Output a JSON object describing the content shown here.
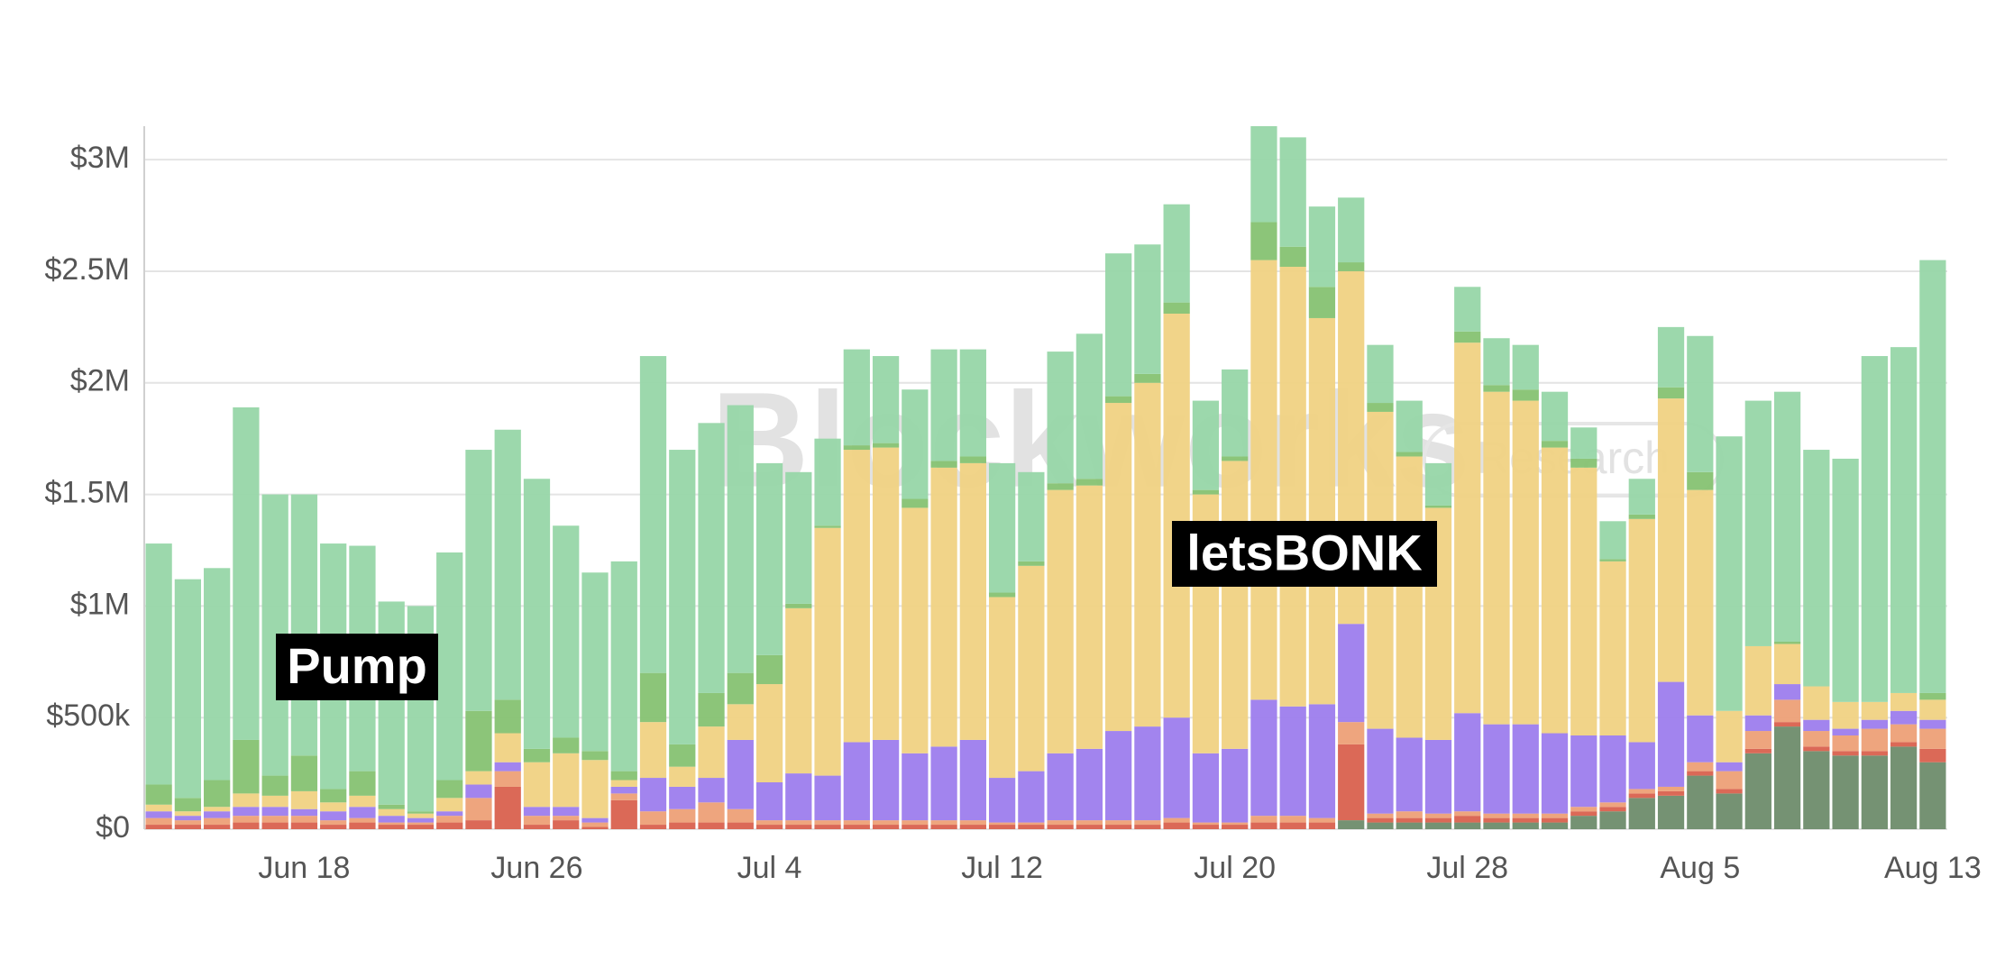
{
  "chart_data": {
    "type": "stacked_bar",
    "watermark": "Blockworks",
    "watermark_sub": "Research",
    "categories": [
      null,
      null,
      null,
      null,
      null,
      "Jun 18",
      null,
      null,
      null,
      null,
      null,
      null,
      null,
      "Jun 26",
      null,
      null,
      null,
      null,
      null,
      null,
      null,
      "Jul 4",
      null,
      null,
      null,
      null,
      null,
      null,
      null,
      "Jul 12",
      null,
      null,
      null,
      null,
      null,
      null,
      null,
      "Jul 20",
      null,
      null,
      null,
      null,
      null,
      null,
      null,
      "Jul 28",
      null,
      null,
      null,
      null,
      null,
      null,
      null,
      "Aug 5",
      null,
      null,
      null,
      null,
      null,
      null,
      null,
      "Aug 13"
    ],
    "ylim": [
      0,
      3150000
    ],
    "yticks": [
      {
        "value": 0,
        "label": "$0"
      },
      {
        "value": 500000,
        "label": "$500k"
      },
      {
        "value": 1000000,
        "label": "$1M"
      },
      {
        "value": 1500000,
        "label": "$1.5M"
      },
      {
        "value": 2000000,
        "label": "$2M"
      },
      {
        "value": 2500000,
        "label": "$2.5M"
      },
      {
        "value": 3000000,
        "label": "$3M"
      }
    ],
    "grid": true,
    "series": [
      {
        "color": "#6e8c6c",
        "values": [
          0,
          0,
          0,
          0,
          0,
          0,
          0,
          0,
          0,
          0,
          0,
          0,
          0,
          0,
          0,
          0,
          0,
          0,
          0,
          0,
          0,
          0,
          0,
          0,
          0,
          0,
          0,
          0,
          0,
          0,
          0,
          0,
          0,
          0,
          0,
          0,
          0,
          0,
          0,
          0,
          0,
          40000,
          30000,
          30000,
          30000,
          30000,
          30000,
          30000,
          30000,
          60000,
          80000,
          140000,
          150000,
          240000,
          160000,
          340000,
          460000,
          350000,
          330000,
          330000,
          370000,
          300000
        ]
      },
      {
        "color": "#d9614e",
        "values": [
          20000,
          20000,
          20000,
          30000,
          30000,
          30000,
          20000,
          30000,
          20000,
          20000,
          30000,
          40000,
          190000,
          20000,
          40000,
          10000,
          130000,
          20000,
          30000,
          30000,
          30000,
          20000,
          20000,
          20000,
          20000,
          20000,
          20000,
          20000,
          20000,
          20000,
          20000,
          20000,
          20000,
          20000,
          20000,
          30000,
          20000,
          20000,
          30000,
          30000,
          30000,
          340000,
          20000,
          20000,
          20000,
          30000,
          20000,
          20000,
          20000,
          20000,
          20000,
          20000,
          20000,
          20000,
          20000,
          20000,
          20000,
          20000,
          20000,
          20000,
          20000,
          60000
        ]
      },
      {
        "color": "#eda077",
        "values": [
          30000,
          20000,
          30000,
          30000,
          30000,
          30000,
          20000,
          20000,
          10000,
          10000,
          30000,
          100000,
          70000,
          40000,
          20000,
          20000,
          30000,
          60000,
          60000,
          90000,
          60000,
          20000,
          20000,
          20000,
          20000,
          20000,
          20000,
          20000,
          20000,
          10000,
          10000,
          20000,
          20000,
          20000,
          20000,
          20000,
          10000,
          10000,
          30000,
          30000,
          20000,
          100000,
          20000,
          30000,
          20000,
          20000,
          20000,
          20000,
          20000,
          20000,
          20000,
          20000,
          20000,
          40000,
          80000,
          80000,
          100000,
          70000,
          70000,
          100000,
          80000,
          90000
        ]
      },
      {
        "color": "#9d7ded",
        "values": [
          30000,
          20000,
          30000,
          40000,
          40000,
          30000,
          40000,
          50000,
          30000,
          20000,
          20000,
          60000,
          40000,
          40000,
          40000,
          20000,
          30000,
          150000,
          100000,
          110000,
          310000,
          170000,
          210000,
          200000,
          350000,
          360000,
          300000,
          330000,
          360000,
          200000,
          230000,
          300000,
          320000,
          400000,
          420000,
          450000,
          310000,
          330000,
          520000,
          490000,
          510000,
          440000,
          380000,
          330000,
          330000,
          440000,
          400000,
          400000,
          360000,
          320000,
          300000,
          210000,
          470000,
          210000,
          40000,
          70000,
          70000,
          50000,
          30000,
          40000,
          60000,
          40000
        ]
      },
      {
        "name": "letsBONK",
        "color": "#f0d283",
        "values": [
          30000,
          20000,
          20000,
          60000,
          50000,
          80000,
          40000,
          50000,
          30000,
          20000,
          60000,
          60000,
          130000,
          200000,
          240000,
          260000,
          30000,
          250000,
          90000,
          230000,
          160000,
          440000,
          740000,
          1110000,
          1310000,
          1310000,
          1100000,
          1250000,
          1240000,
          810000,
          920000,
          1180000,
          1180000,
          1470000,
          1540000,
          1810000,
          1160000,
          1290000,
          1970000,
          1970000,
          1730000,
          1580000,
          1420000,
          1260000,
          1040000,
          1660000,
          1490000,
          1450000,
          1280000,
          1200000,
          780000,
          1000000,
          1270000,
          1010000,
          230000,
          310000,
          180000,
          150000,
          120000,
          80000,
          80000,
          90000
        ]
      },
      {
        "color": "#86c272",
        "values": [
          90000,
          60000,
          120000,
          240000,
          90000,
          160000,
          60000,
          110000,
          20000,
          10000,
          80000,
          270000,
          150000,
          60000,
          70000,
          40000,
          40000,
          220000,
          100000,
          150000,
          140000,
          130000,
          20000,
          10000,
          20000,
          20000,
          40000,
          30000,
          30000,
          20000,
          20000,
          30000,
          30000,
          30000,
          40000,
          50000,
          20000,
          20000,
          170000,
          90000,
          140000,
          40000,
          40000,
          20000,
          10000,
          50000,
          30000,
          50000,
          30000,
          40000,
          10000,
          20000,
          50000,
          80000,
          0,
          0,
          10000,
          0,
          0,
          0,
          0,
          30000
        ]
      },
      {
        "name": "Pump",
        "color": "#97d6a8",
        "values": [
          1080000,
          980000,
          950000,
          1490000,
          1260000,
          1170000,
          1100000,
          1010000,
          910000,
          920000,
          1020000,
          1170000,
          1210000,
          1210000,
          950000,
          800000,
          940000,
          1420000,
          1320000,
          1210000,
          1200000,
          860000,
          590000,
          390000,
          430000,
          390000,
          490000,
          500000,
          480000,
          580000,
          400000,
          590000,
          650000,
          640000,
          580000,
          440000,
          400000,
          390000,
          430000,
          490000,
          360000,
          290000,
          260000,
          230000,
          190000,
          200000,
          210000,
          200000,
          220000,
          140000,
          170000,
          160000,
          270000,
          610000,
          1230000,
          1100000,
          1120000,
          1060000,
          1090000,
          1550000,
          1550000,
          1940000
        ]
      }
    ]
  }
}
